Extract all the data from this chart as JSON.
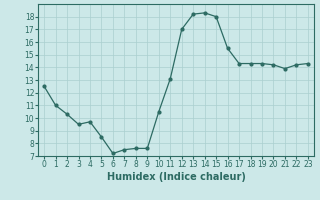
{
  "x": [
    0,
    1,
    2,
    3,
    4,
    5,
    6,
    7,
    8,
    9,
    10,
    11,
    12,
    13,
    14,
    15,
    16,
    17,
    18,
    19,
    20,
    21,
    22,
    23
  ],
  "y": [
    12.5,
    11.0,
    10.3,
    9.5,
    9.7,
    8.5,
    7.2,
    7.5,
    7.6,
    7.6,
    10.5,
    13.1,
    17.0,
    18.2,
    18.3,
    18.0,
    15.5,
    14.3,
    14.3,
    14.3,
    14.2,
    13.9,
    14.2,
    14.3
  ],
  "xlabel": "Humidex (Indice chaleur)",
  "ylim": [
    7,
    19
  ],
  "xlim": [
    -0.5,
    23.5
  ],
  "yticks": [
    7,
    8,
    9,
    10,
    11,
    12,
    13,
    14,
    15,
    16,
    17,
    18
  ],
  "xticks": [
    0,
    1,
    2,
    3,
    4,
    5,
    6,
    7,
    8,
    9,
    10,
    11,
    12,
    13,
    14,
    15,
    16,
    17,
    18,
    19,
    20,
    21,
    22,
    23
  ],
  "line_color": "#2d6b63",
  "marker_color": "#2d6b63",
  "bg_color": "#cce8e8",
  "grid_color": "#aacfcf",
  "xlabel_fontsize": 7,
  "tick_fontsize": 5.5
}
